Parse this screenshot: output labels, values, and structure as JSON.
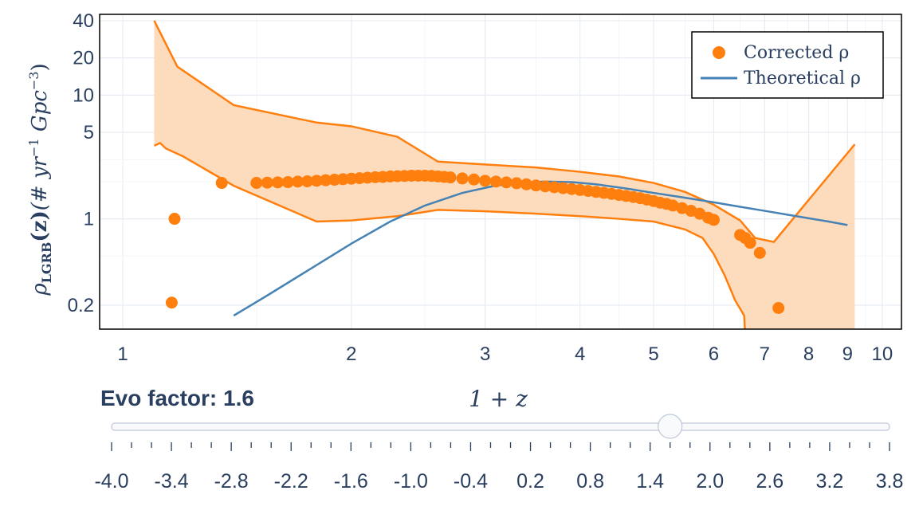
{
  "chart_data": {
    "type": "scatter",
    "xlabel": "1 + z",
    "ylabel_parts": {
      "rho": "ρ",
      "sub": "LGRB",
      "arg": "(z)",
      "units": "(# yr",
      "exp1": "−1",
      "mid": " Gpc",
      "exp2": "−3",
      "close": ")"
    },
    "x_scale": "log",
    "y_scale": "log",
    "xlim": [
      1.0,
      10.6
    ],
    "ylim": [
      0.165,
      45
    ],
    "grid": true,
    "x_ticks": [
      1,
      2,
      3,
      4,
      5,
      6,
      7,
      8,
      9,
      10
    ],
    "x_tick_labels": [
      "1",
      "2",
      "3",
      "4",
      "5",
      "6",
      "7",
      "8",
      "9",
      "10"
    ],
    "y_ticks": [
      0.2,
      1,
      5,
      10,
      20,
      40
    ],
    "y_tick_labels": [
      "0.2",
      "1",
      "5",
      "10",
      "20",
      "40"
    ],
    "legend": {
      "position": "top-right",
      "entries": [
        {
          "label": "Corrected ρ",
          "color": "#ff7f0e",
          "marker": "circle"
        },
        {
          "label": "Theoretical ρ",
          "color": "#4682b4",
          "marker": "line"
        }
      ]
    },
    "series": [
      {
        "name": "Corrected ρ",
        "type": "scatter",
        "color": "#ff7f0e",
        "x": [
          1.16,
          1.17,
          1.35,
          1.5,
          1.55,
          1.6,
          1.65,
          1.7,
          1.75,
          1.8,
          1.85,
          1.9,
          1.95,
          2.0,
          2.05,
          2.1,
          2.15,
          2.2,
          2.25,
          2.3,
          2.35,
          2.4,
          2.45,
          2.5,
          2.55,
          2.6,
          2.65,
          2.7,
          2.8,
          2.9,
          3.0,
          3.1,
          3.2,
          3.3,
          3.4,
          3.5,
          3.6,
          3.7,
          3.8,
          3.9,
          4.0,
          4.1,
          4.2,
          4.3,
          4.4,
          4.5,
          4.6,
          4.7,
          4.8,
          4.9,
          5.0,
          5.1,
          5.2,
          5.3,
          5.45,
          5.6,
          5.75,
          5.9,
          6.0,
          6.5,
          6.6,
          6.7,
          6.9,
          7.3
        ],
        "y": [
          0.21,
          1.0,
          1.95,
          1.95,
          1.96,
          1.97,
          1.98,
          2.0,
          2.01,
          2.03,
          2.05,
          2.07,
          2.09,
          2.11,
          2.13,
          2.15,
          2.17,
          2.18,
          2.2,
          2.21,
          2.22,
          2.23,
          2.23,
          2.23,
          2.22,
          2.2,
          2.18,
          2.16,
          2.12,
          2.08,
          2.03,
          2.0,
          1.97,
          1.94,
          1.9,
          1.86,
          1.83,
          1.8,
          1.77,
          1.74,
          1.71,
          1.68,
          1.65,
          1.62,
          1.59,
          1.56,
          1.53,
          1.5,
          1.47,
          1.43,
          1.39,
          1.35,
          1.32,
          1.28,
          1.22,
          1.16,
          1.1,
          1.02,
          0.98,
          0.74,
          0.7,
          0.64,
          0.53,
          0.19
        ]
      },
      {
        "name": "Theoretical ρ",
        "type": "line",
        "color": "#4682b4",
        "x": [
          1.4,
          1.55,
          1.75,
          2.0,
          2.25,
          2.5,
          2.8,
          3.1,
          3.4,
          3.6,
          3.9,
          4.2,
          4.6,
          5.0,
          5.5,
          6.0,
          6.5,
          7.0,
          7.5,
          8.0,
          8.5,
          9.0
        ],
        "y": [
          0.165,
          0.24,
          0.38,
          0.63,
          0.95,
          1.28,
          1.62,
          1.86,
          1.97,
          2.0,
          1.98,
          1.9,
          1.76,
          1.62,
          1.48,
          1.36,
          1.25,
          1.16,
          1.08,
          1.01,
          0.95,
          0.89
        ]
      }
    ],
    "band": {
      "color": "#ff7f0e",
      "fill": "#fddcbe",
      "x_upper": [
        1.1,
        1.18,
        1.4,
        1.8,
        2.0,
        2.3,
        2.6,
        3.0,
        3.5,
        4.0,
        4.5,
        5.0,
        5.5,
        6.0,
        6.5,
        6.8,
        7.2,
        9.2
      ],
      "upper": [
        40,
        17,
        8.3,
        6.0,
        5.6,
        4.6,
        2.9,
        2.75,
        2.6,
        2.4,
        2.2,
        1.95,
        1.65,
        1.3,
        0.97,
        0.7,
        0.65,
        4.0
      ],
      "x_lower": [
        1.1,
        1.12,
        1.14,
        1.2,
        1.4,
        1.8,
        2.0,
        2.3,
        2.6,
        3.0,
        3.5,
        4.0,
        4.5,
        5.0,
        5.5,
        5.8,
        6.0,
        6.2,
        6.4,
        6.58
      ],
      "lower": [
        3.9,
        4.1,
        3.7,
        3.2,
        1.85,
        0.95,
        0.97,
        1.05,
        1.18,
        1.15,
        1.1,
        1.05,
        1.0,
        0.95,
        0.82,
        0.7,
        0.52,
        0.35,
        0.22,
        0.165
      ]
    }
  },
  "slider": {
    "label": "Evo factor: 1.6",
    "current_value": 1.6,
    "min": -4.0,
    "max": 3.8,
    "step": 0.2,
    "tick_labels": [
      "-4.0",
      "-3.4",
      "-2.8",
      "-2.2",
      "-1.6",
      "-1.0",
      "-0.4",
      "0.2",
      "0.8",
      "1.4",
      "2.0",
      "2.6",
      "3.2",
      "3.8"
    ]
  }
}
